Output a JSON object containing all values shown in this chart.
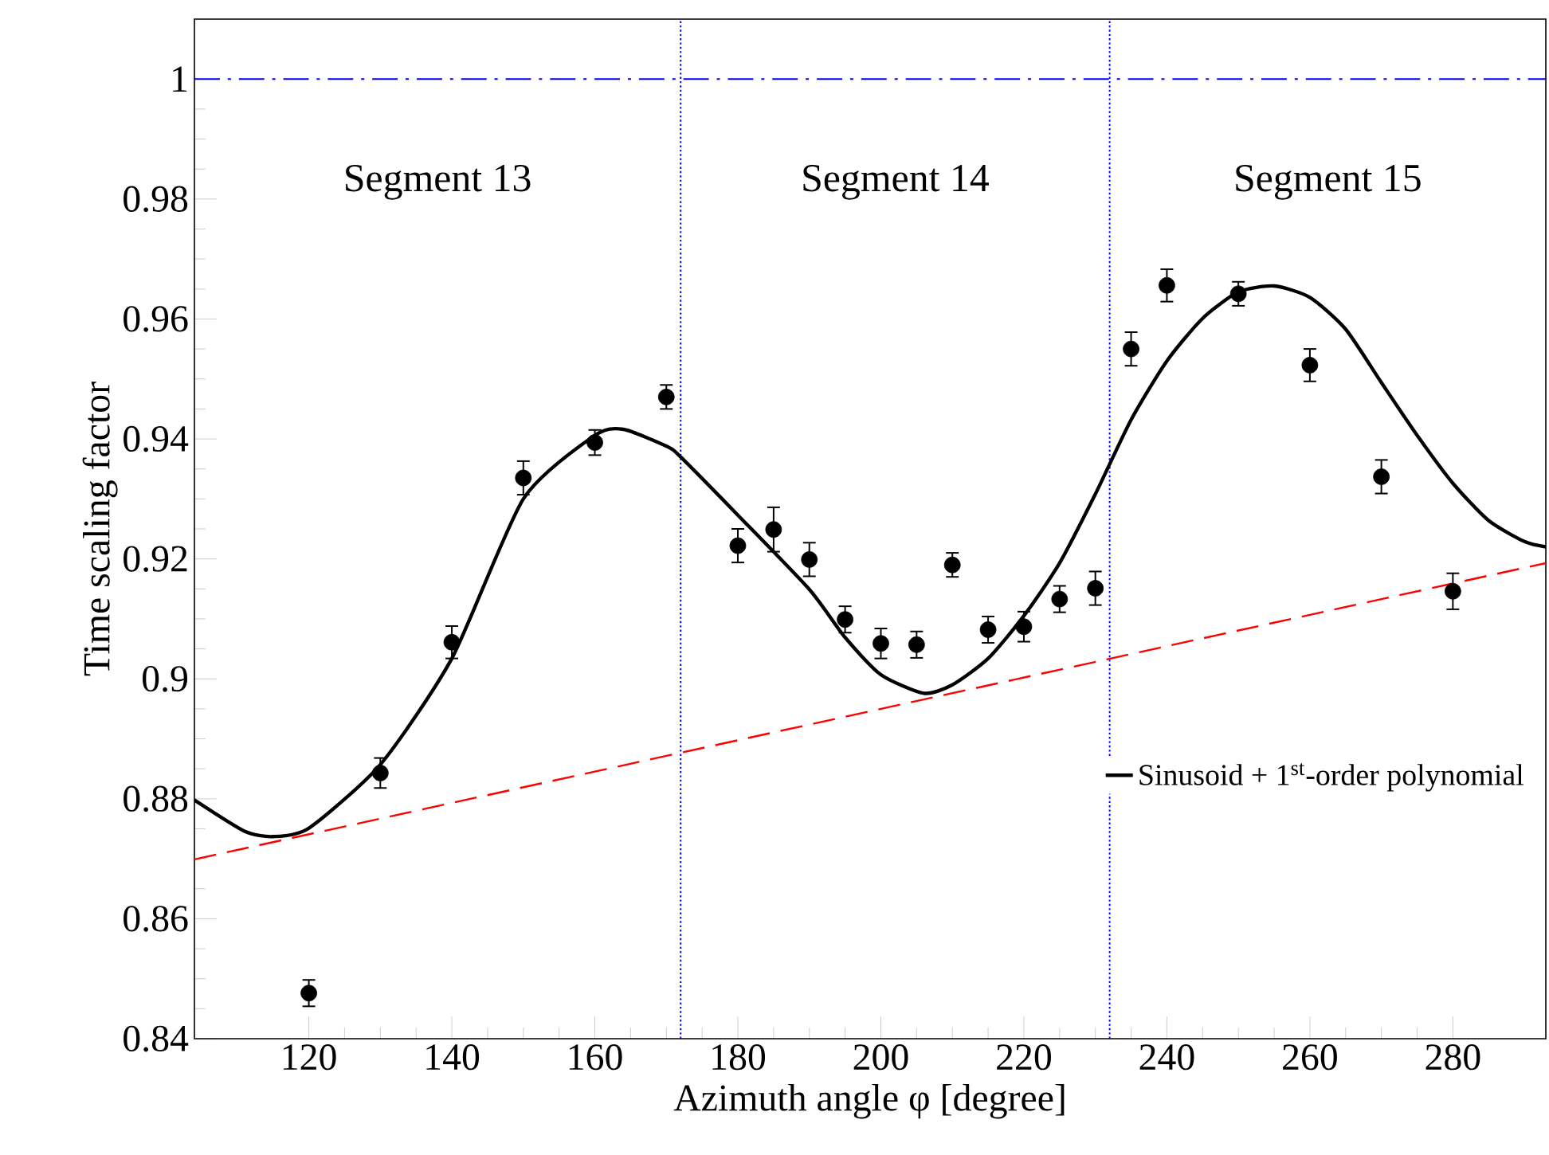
{
  "chart_data": {
    "type": "scatter",
    "xlabel": "Azimuth angle φ [degree]",
    "ylabel": "Time scaling factor",
    "xlim": [
      104,
      293
    ],
    "ylim": [
      0.84,
      1.01
    ],
    "xticks": [
      120,
      140,
      160,
      180,
      200,
      220,
      240,
      260,
      280
    ],
    "yticks": [
      0.84,
      0.86,
      0.88,
      0.9,
      0.92,
      0.94,
      0.96,
      0.98,
      1
    ],
    "legend": "bottom right",
    "marker": "circle",
    "series": [
      {
        "color": "#000000",
        "x": [
          120,
          130,
          140,
          150,
          160,
          170,
          180,
          185,
          190,
          195,
          200,
          205,
          210,
          215,
          220,
          225,
          230,
          235,
          240,
          250,
          260,
          270,
          280
        ],
        "values": [
          0.8476,
          0.8843,
          0.9061,
          0.9335,
          0.9394,
          0.947,
          0.9222,
          0.9249,
          0.9199,
          0.9099,
          0.9059,
          0.9057,
          0.919,
          0.9082,
          0.9087,
          0.9133,
          0.9151,
          0.955,
          0.9656,
          0.9642,
          0.9523,
          0.9337,
          0.9146
        ],
        "errors": [
          0.0022,
          0.0025,
          0.0027,
          0.0028,
          0.0021,
          0.002,
          0.0028,
          0.0037,
          0.0028,
          0.0022,
          0.0025,
          0.0022,
          0.002,
          0.0022,
          0.0025,
          0.0022,
          0.0028,
          0.0028,
          0.0027,
          0.002,
          0.0027,
          0.0028,
          0.003
        ]
      },
      {
        "type": "line",
        "name": "Sinusoid + 1$^{st}$-order polynomial",
        "color": "#000000",
        "line_style": "solid",
        "marker": "none",
        "x": [
          104,
          111,
          115,
          120,
          130,
          140,
          150,
          160,
          164,
          170,
          172,
          180,
          190,
          195,
          200,
          206,
          210,
          215,
          220,
          225,
          230,
          235,
          240,
          245,
          250,
          255,
          260,
          265,
          270,
          275,
          280,
          285,
          290,
          293
        ],
        "values": [
          0.8798,
          0.8746,
          0.8737,
          0.8751,
          0.8857,
          0.9034,
          0.93,
          0.9406,
          0.9416,
          0.9388,
          0.937,
          0.9273,
          0.9149,
          0.9069,
          0.9007,
          0.8976,
          0.899,
          0.9034,
          0.9105,
          0.9193,
          0.9308,
          0.9432,
          0.953,
          0.9601,
          0.9645,
          0.9655,
          0.9636,
          0.9583,
          0.9494,
          0.9406,
          0.9326,
          0.9264,
          0.9229,
          0.922
        ]
      },
      {
        "type": "line",
        "color": "#ff0000",
        "line_style": "dashed",
        "marker": "none",
        "x": [
          104,
          293
        ],
        "values": [
          0.8699,
          0.9193
        ]
      }
    ],
    "ref_lines": [
      {
        "axis": "y",
        "value": 1,
        "color": "#0000ff",
        "line_style": "dashdot"
      },
      {
        "axis": "x",
        "value": 172,
        "color": "#0000ff",
        "line_style": "dotted"
      },
      {
        "axis": "x",
        "value": 232,
        "color": "#0000ff",
        "line_style": "dotted"
      }
    ],
    "annotations": [
      "Segment 13",
      "Segment 14",
      "Segment 15"
    ]
  }
}
